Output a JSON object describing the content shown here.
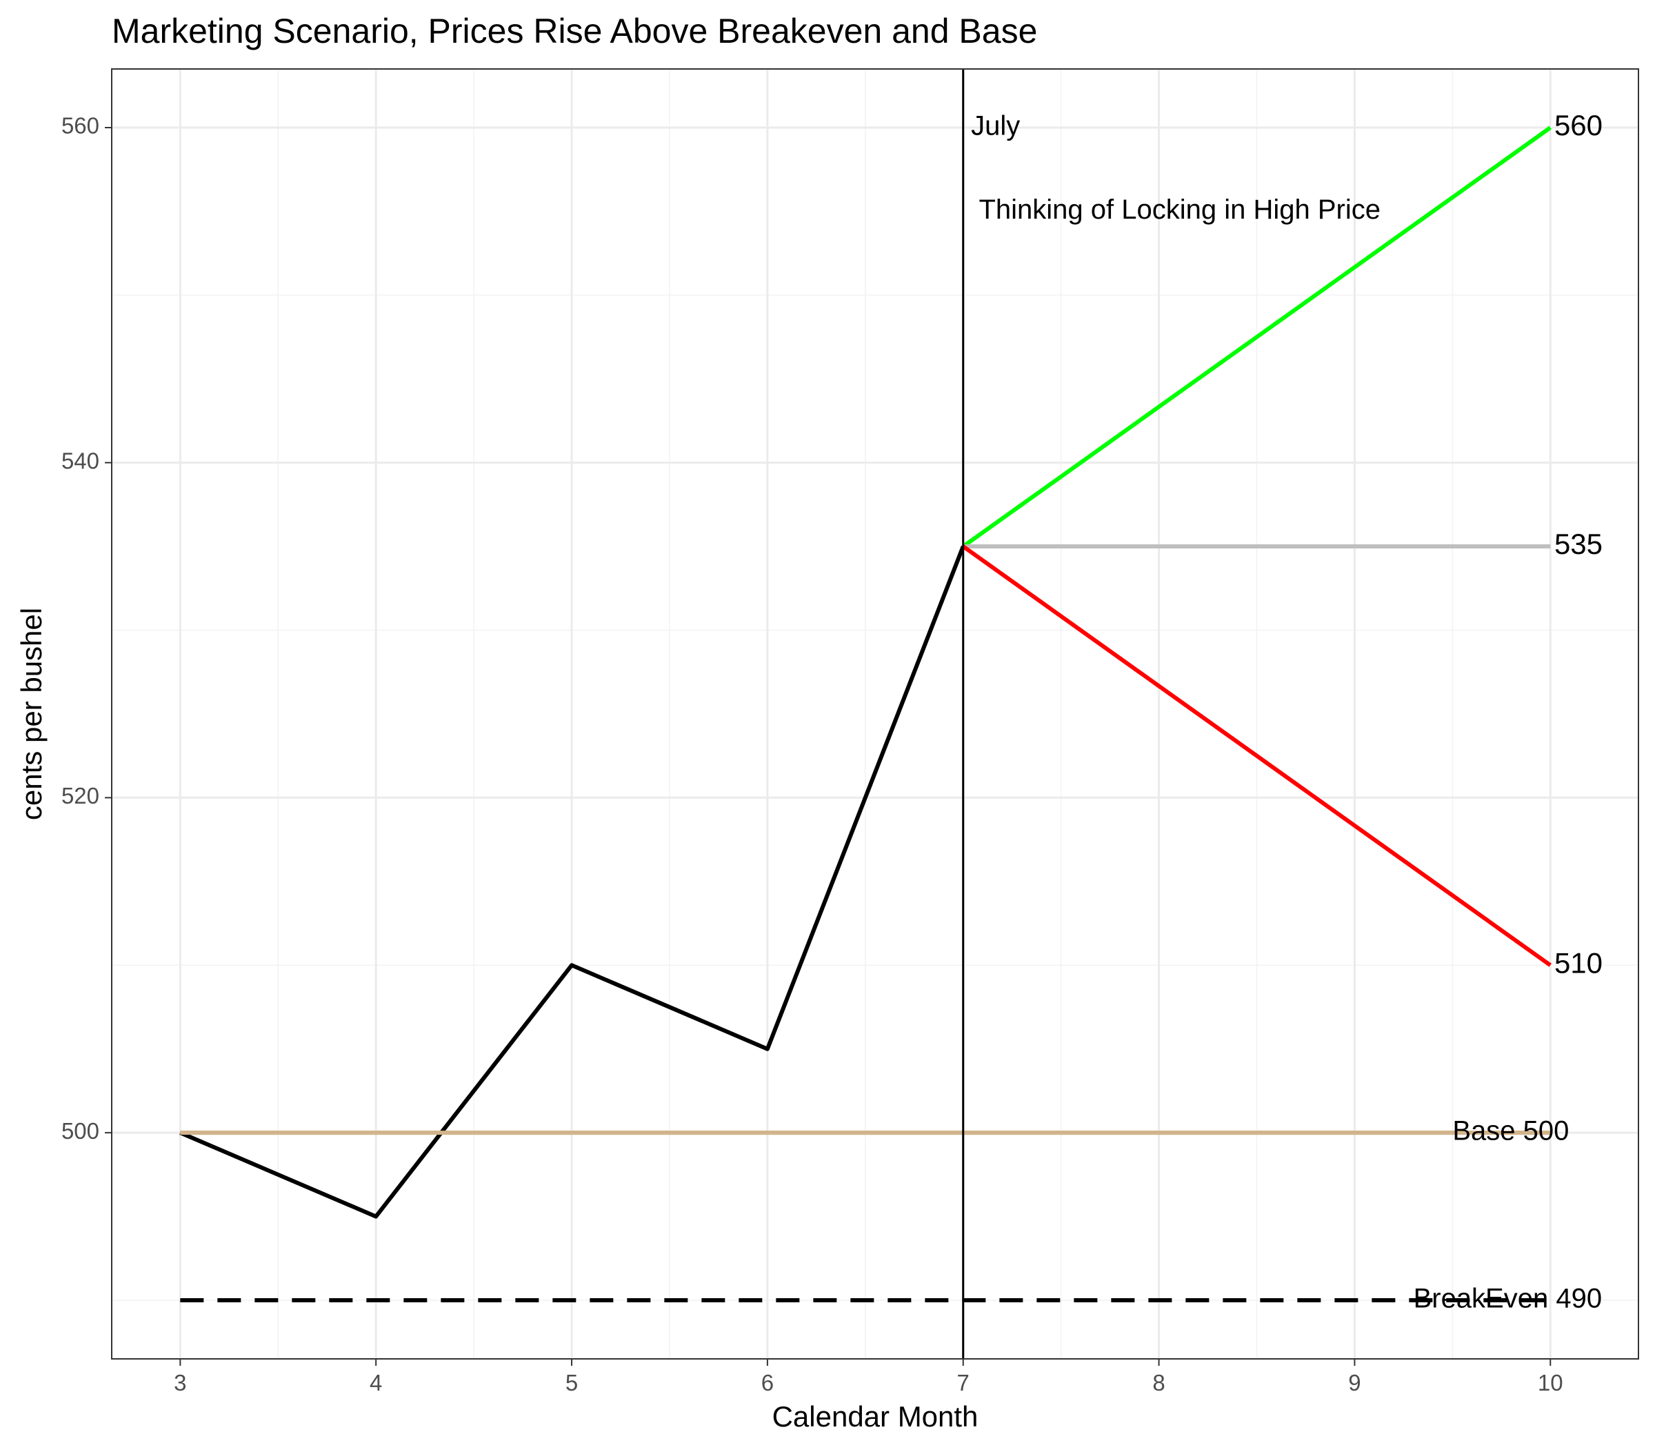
{
  "chart_data": {
    "type": "line",
    "title": "Marketing Scenario, Prices Rise Above Breakeven and Base",
    "xlabel": "Calendar Month",
    "ylabel": "cents per bushel",
    "xlim": [
      2.65,
      10.45
    ],
    "ylim": [
      486.5,
      563.5
    ],
    "x_ticks": [
      3,
      4,
      5,
      6,
      7,
      8,
      9,
      10
    ],
    "y_ticks": [
      500,
      520,
      540,
      560
    ],
    "grid": true,
    "legend": "none",
    "series": [
      {
        "x": [
          3,
          4,
          5,
          6,
          7
        ],
        "y": [
          500,
          495,
          510,
          505,
          535
        ],
        "color": "#000000",
        "dash": "solid"
      },
      {
        "x": [
          7,
          10
        ],
        "y": [
          535,
          560
        ],
        "color": "#00ff00",
        "dash": "solid"
      },
      {
        "x": [
          7,
          10
        ],
        "y": [
          535,
          535
        ],
        "color": "#bebebe",
        "dash": "solid"
      },
      {
        "x": [
          7,
          10
        ],
        "y": [
          535,
          510
        ],
        "color": "#ff0000",
        "dash": "solid"
      },
      {
        "x": [
          3,
          10
        ],
        "y": [
          500,
          500
        ],
        "color": "#d2b48c",
        "dash": "solid"
      },
      {
        "x": [
          3,
          10
        ],
        "y": [
          490,
          490
        ],
        "color": "#000000",
        "dash": "dashed"
      }
    ],
    "vline": {
      "x": 7,
      "color": "#000000"
    },
    "annotations": [
      {
        "text": "July",
        "x": 7.04,
        "y": 560,
        "anchor": "start"
      },
      {
        "text": "Thinking of Locking in High Price",
        "x": 7.08,
        "y": 555,
        "anchor": "start"
      },
      {
        "text": "560",
        "x": 10.02,
        "y": 560,
        "anchor": "start"
      },
      {
        "text": "535",
        "x": 10.02,
        "y": 535,
        "anchor": "start"
      },
      {
        "text": "510",
        "x": 10.02,
        "y": 510,
        "anchor": "start"
      },
      {
        "text": "Base 500",
        "x": 9.5,
        "y": 500,
        "anchor": "start"
      },
      {
        "text": "BreakEven 490",
        "x": 9.3,
        "y": 490,
        "anchor": "start"
      }
    ]
  }
}
